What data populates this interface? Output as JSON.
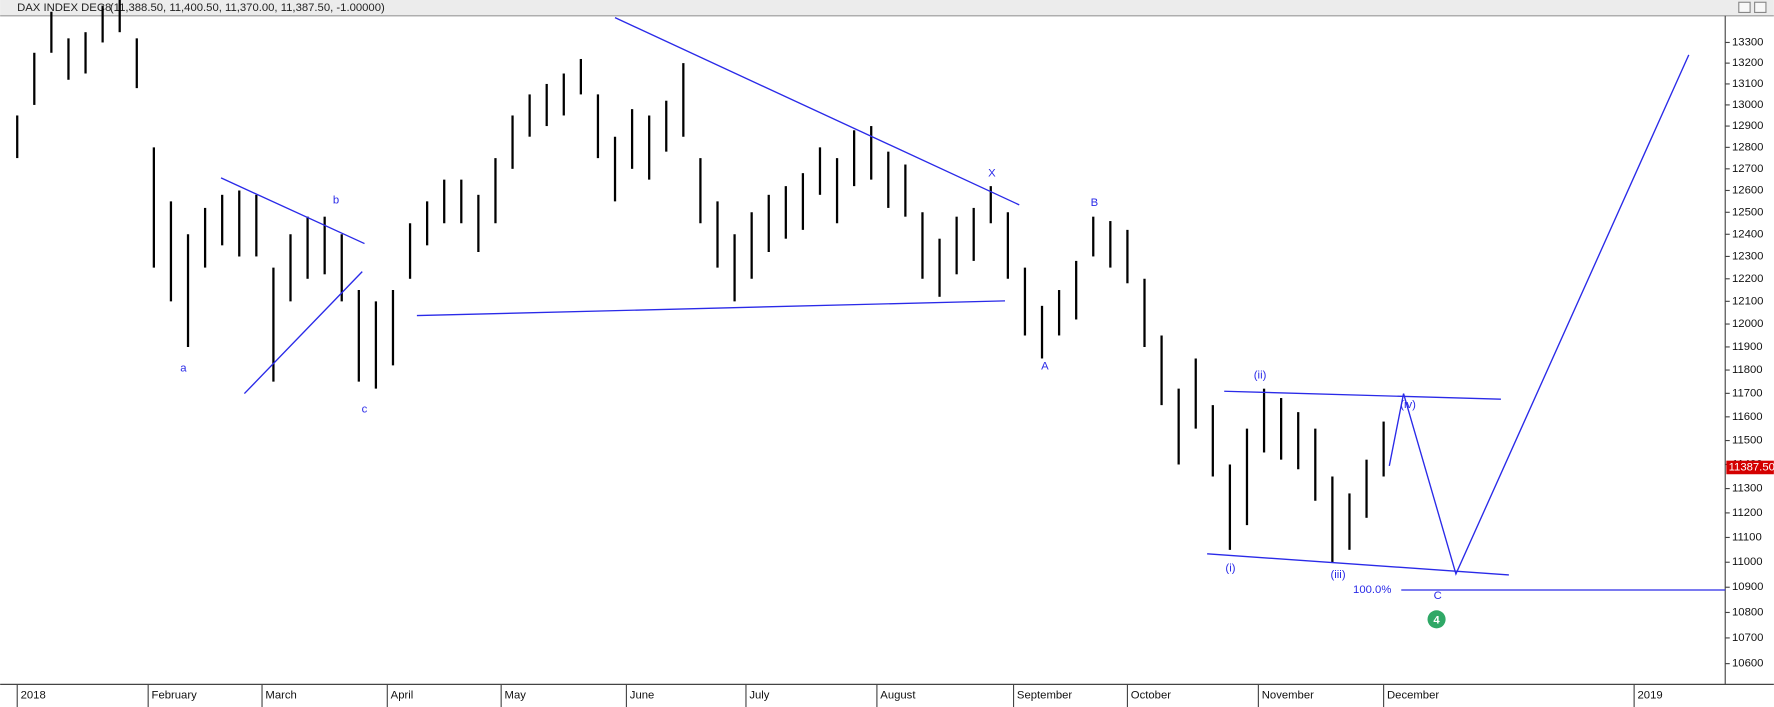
{
  "chart_data": {
    "type": "ohlc",
    "symbol": "DAX INDEX DEC8",
    "quote": "(11,388.50, 11,400.50, 11,370.00, 11,387.50, -1.00000)",
    "log_scale": true,
    "grid": false,
    "bar_color": "#000000",
    "line_color": "#2a2ae8",
    "xlim": [
      -3,
      300
    ],
    "ylim": [
      10520,
      13430
    ],
    "xticks": [
      {
        "value": 0,
        "label": "2018"
      },
      {
        "value": 23,
        "label": "February"
      },
      {
        "value": 43,
        "label": "March"
      },
      {
        "value": 65,
        "label": "April"
      },
      {
        "value": 85,
        "label": "May"
      },
      {
        "value": 107,
        "label": "June"
      },
      {
        "value": 128,
        "label": "July"
      },
      {
        "value": 151,
        "label": "August"
      },
      {
        "value": 175,
        "label": "September"
      },
      {
        "value": 195,
        "label": "October"
      },
      {
        "value": 218,
        "label": "November"
      },
      {
        "value": 240,
        "label": "December"
      },
      {
        "value": 284,
        "label": "2019"
      }
    ],
    "yticks": [
      10600,
      10700,
      10800,
      10900,
      11000,
      11100,
      11200,
      11300,
      11400,
      11500,
      11600,
      11700,
      11800,
      11900,
      12000,
      12100,
      12200,
      12300,
      12400,
      12500,
      12600,
      12700,
      12800,
      12900,
      13000,
      13100,
      13200,
      13300
    ],
    "x": [
      0,
      3,
      6,
      9,
      12,
      15,
      18,
      21,
      24,
      27,
      30,
      33,
      36,
      39,
      42,
      45,
      48,
      51,
      54,
      57,
      60,
      63,
      66,
      69,
      72,
      75,
      78,
      81,
      84,
      87,
      90,
      93,
      96,
      99,
      102,
      105,
      108,
      111,
      114,
      117,
      120,
      123,
      126,
      129,
      132,
      135,
      138,
      141,
      144,
      147,
      150,
      153,
      156,
      159,
      162,
      165,
      168,
      171,
      174,
      177,
      180,
      183,
      186,
      189,
      192,
      195,
      198,
      201,
      204,
      207,
      210,
      213,
      216,
      219,
      222,
      225,
      228,
      231,
      234,
      237,
      240
    ],
    "high": [
      12950,
      13250,
      13450,
      13320,
      13350,
      13480,
      13520,
      13320,
      12800,
      12550,
      12400,
      12520,
      12580,
      12600,
      12580,
      12250,
      12400,
      12480,
      12480,
      12400,
      12150,
      12100,
      12150,
      12450,
      12550,
      12650,
      12650,
      12580,
      12750,
      12950,
      13050,
      13100,
      13150,
      13220,
      13050,
      12850,
      12980,
      12950,
      13020,
      13200,
      12750,
      12550,
      12400,
      12500,
      12580,
      12620,
      12680,
      12800,
      12750,
      12880,
      12900,
      12780,
      12720,
      12500,
      12380,
      12480,
      12520,
      12620,
      12500,
      12250,
      12080,
      12150,
      12280,
      12480,
      12460,
      12420,
      12200,
      11950,
      11720,
      11850,
      11650,
      11400,
      11550,
      11720,
      11680,
      11620,
      11550,
      11350,
      11280,
      11420,
      11580
    ],
    "low": [
      12750,
      13000,
      13250,
      13120,
      13150,
      13300,
      13350,
      13080,
      12250,
      12100,
      11900,
      12250,
      12350,
      12300,
      12300,
      11750,
      12100,
      12200,
      12220,
      12100,
      11750,
      11720,
      11820,
      12200,
      12350,
      12450,
      12450,
      12320,
      12450,
      12700,
      12850,
      12900,
      12950,
      13050,
      12750,
      12550,
      12700,
      12650,
      12780,
      12850,
      12450,
      12250,
      12100,
      12200,
      12320,
      12380,
      12420,
      12580,
      12450,
      12620,
      12650,
      12520,
      12480,
      12200,
      12120,
      12220,
      12280,
      12450,
      12200,
      11950,
      11850,
      11950,
      12020,
      12300,
      12250,
      12180,
      11900,
      11650,
      11400,
      11550,
      11350,
      11050,
      11150,
      11450,
      11420,
      11380,
      11250,
      11000,
      11050,
      11180,
      11350
    ],
    "lines": [
      {
        "x": [
          35.8,
          61
        ],
        "y": [
          12658,
          12358
        ]
      },
      {
        "x": [
          39.9,
          60.6
        ],
        "y": [
          11699,
          12232
        ]
      },
      {
        "x": [
          70.2,
          173.5
        ],
        "y": [
          12037,
          12102
        ]
      },
      {
        "x": [
          105,
          176
        ],
        "y": [
          13421,
          12534
        ]
      },
      {
        "x": [
          212,
          260.6
        ],
        "y": [
          11709,
          11675
        ]
      },
      {
        "x": [
          209,
          262
        ],
        "y": [
          11034,
          10949
        ]
      },
      {
        "x": [
          241,
          243.5,
          252.7,
          293.6
        ],
        "y": [
          11394,
          11699,
          10953,
          13240
        ]
      },
      {
        "x": [
          243.1,
          300
        ],
        "y": [
          10889,
          10889
        ]
      }
    ],
    "annotations": [
      {
        "text": "a",
        "x": 29.2,
        "y": 11807
      },
      {
        "text": "b",
        "x": 56,
        "y": 12554
      },
      {
        "text": "c",
        "x": 61,
        "y": 11632
      },
      {
        "text": "X",
        "x": 171.2,
        "y": 12679
      },
      {
        "text": "B",
        "x": 189.2,
        "y": 12543
      },
      {
        "text": "A",
        "x": 180.5,
        "y": 11815
      },
      {
        "text": "(ii)",
        "x": 218.3,
        "y": 11777
      },
      {
        "text": "(iv)",
        "x": 244.3,
        "y": 11651
      },
      {
        "text": "(i)",
        "x": 213.1,
        "y": 10975
      },
      {
        "text": "(iii)",
        "x": 232,
        "y": 10949
      },
      {
        "text": "100.0%",
        "x": 238,
        "y": 10889
      },
      {
        "text": "C",
        "x": 249.5,
        "y": 10866
      }
    ],
    "marker": {
      "text": "4",
      "x": 249.3,
      "y": 10773,
      "color": "#2fa866"
    },
    "last": {
      "value": 11387.5,
      "label": "11387.50",
      "color": "#d40000"
    }
  }
}
